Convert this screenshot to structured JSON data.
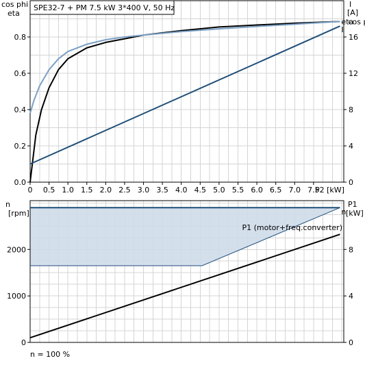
{
  "header": {
    "title": "SPE32-7 + PM   7.5 kW   3*400 V, 50 Hz"
  },
  "footer": {
    "note": "n = 100 %"
  },
  "colors": {
    "eta": "#000000",
    "cos_phi": "#7aa0c4",
    "current": "#1f4e79",
    "speed": "#1f4e79",
    "speed_band_fill": "#cfdcea",
    "power": "#000000",
    "grid": "#d4d4d4"
  },
  "chart_data": [
    {
      "type": "line",
      "title": "SPE32-7 + PM   7.5 kW   3*400 V, 50 Hz",
      "xlabel": "P2 [kW]",
      "ylabel_left": [
        "cos phi",
        "eta"
      ],
      "ylabel_right": [
        "I",
        "[A]"
      ],
      "xlim": [
        0,
        8.3
      ],
      "ylim_left": [
        0,
        1.0
      ],
      "ylim_right": [
        0,
        20
      ],
      "x_ticks": [
        "0",
        "0.5",
        "1.0",
        "1.5",
        "2.0",
        "2.5",
        "3.0",
        "3.5",
        "4.0",
        "4.5",
        "5.0",
        "5.5",
        "6.0",
        "6.5",
        "7.0",
        "7.5"
      ],
      "y_ticks_left": [
        "0.0",
        "0.2",
        "0.4",
        "0.6",
        "0.8"
      ],
      "y_ticks_right": [
        "0",
        "4",
        "8",
        "12",
        "16"
      ],
      "grid": true,
      "series": [
        {
          "name": "eta",
          "axis": "left",
          "color": "#000000",
          "x": [
            0,
            0.15,
            0.3,
            0.5,
            0.75,
            1.0,
            1.5,
            2.0,
            2.5,
            3.0,
            4.0,
            5.0,
            6.0,
            7.0,
            8.0,
            8.2
          ],
          "y": [
            0,
            0.26,
            0.4,
            0.52,
            0.62,
            0.68,
            0.74,
            0.77,
            0.79,
            0.81,
            0.835,
            0.855,
            0.866,
            0.876,
            0.884,
            0.885
          ]
        },
        {
          "name": "cos phi",
          "axis": "left",
          "color": "#7aa0c4",
          "x": [
            0,
            0.1,
            0.25,
            0.5,
            0.75,
            1.0,
            1.5,
            2.0,
            2.5,
            3.0,
            4.0,
            5.0,
            6.0,
            7.0,
            8.0,
            8.2
          ],
          "y": [
            0.38,
            0.45,
            0.53,
            0.62,
            0.68,
            0.72,
            0.76,
            0.785,
            0.8,
            0.81,
            0.83,
            0.845,
            0.858,
            0.87,
            0.883,
            0.885
          ]
        },
        {
          "name": "I",
          "axis": "right",
          "color": "#1f4e79",
          "x": [
            0,
            8.2
          ],
          "y": [
            2.0,
            17.2
          ]
        }
      ]
    },
    {
      "type": "line",
      "xlim": [
        0,
        8.3
      ],
      "ylabel_left": [
        "n",
        "[rpm]"
      ],
      "ylabel_right": [
        "P1",
        "[kW]"
      ],
      "ylim_left": [
        0,
        3050
      ],
      "ylim_right": [
        0,
        12.2
      ],
      "y_ticks_left": [
        "0",
        "1000",
        "2000"
      ],
      "y_ticks_right": [
        "0",
        "4",
        "8"
      ],
      "grid": true,
      "series": [
        {
          "name": "n",
          "axis": "left",
          "color": "#1f4e79",
          "x": [
            0,
            8.2
          ],
          "y": [
            2900,
            2900
          ]
        },
        {
          "name": "",
          "axis": "left",
          "color": "#1f4e79",
          "x": [
            0,
            4.55,
            8.2
          ],
          "y": [
            1650,
            1650,
            2900
          ]
        },
        {
          "name": "P1 (motor+freq.converter)",
          "axis": "right",
          "color": "#000000",
          "x": [
            0,
            8.2
          ],
          "y": [
            0.4,
            9.3
          ]
        }
      ]
    }
  ]
}
